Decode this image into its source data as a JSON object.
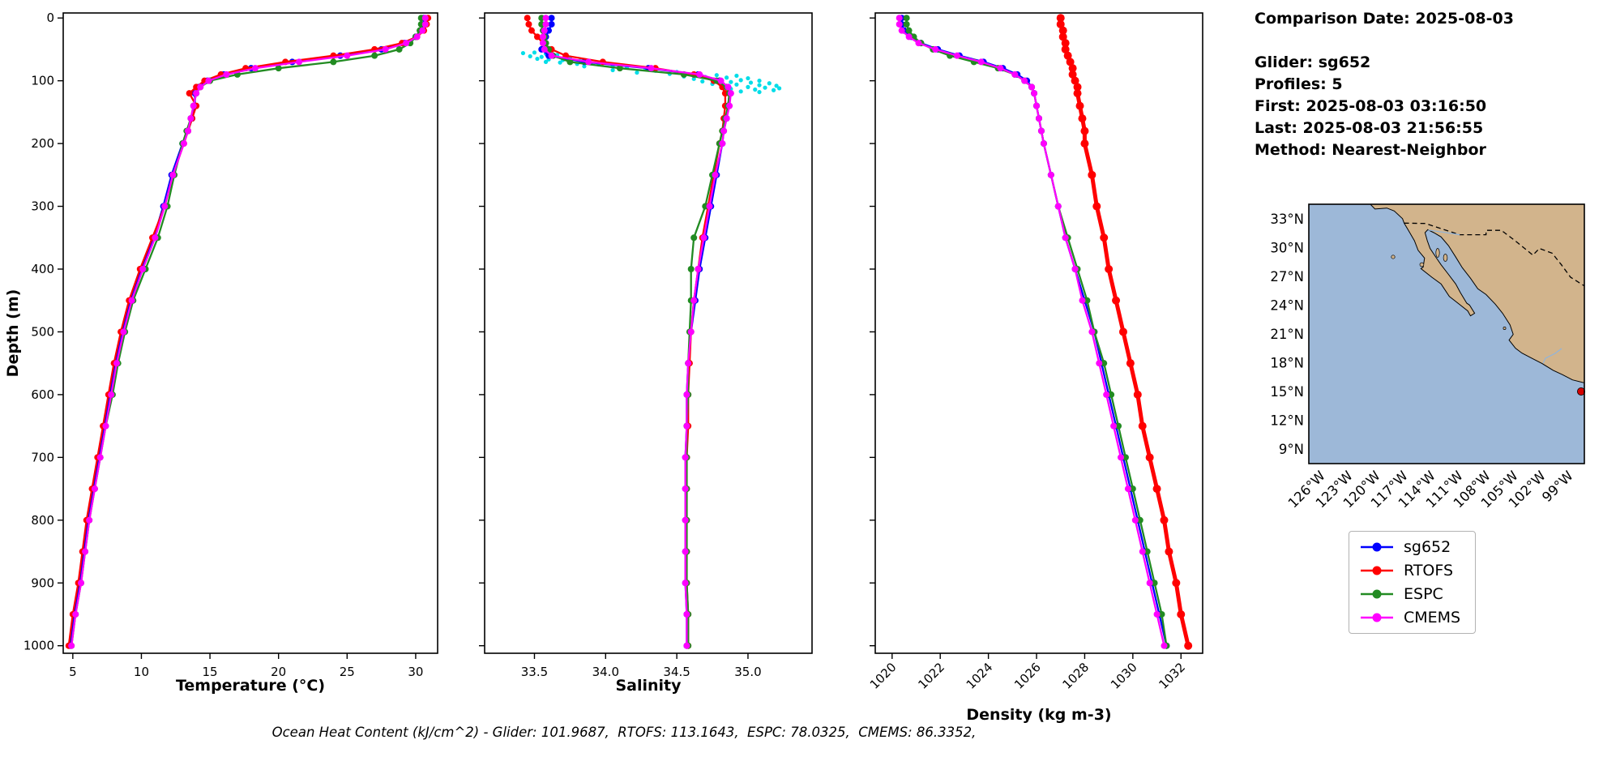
{
  "info_panel": {
    "date_line": "Comparison Date: 2025-08-03",
    "glider_line": "Glider: sg652",
    "profiles_line": "Profiles: 5",
    "first_line": "First: 2025-08-03 03:16:50",
    "last_line": "Last: 2025-08-03 21:56:55",
    "method_line": "Method: Nearest-Neighbor"
  },
  "legend": {
    "items": [
      {
        "label": "sg652",
        "color": "#0000ff"
      },
      {
        "label": "RTOFS",
        "color": "#ff0000"
      },
      {
        "label": "ESPC",
        "color": "#228b22"
      },
      {
        "label": "CMEMS",
        "color": "#ff00ff"
      }
    ]
  },
  "map": {
    "ocean_color": "#9db8d8",
    "land_color": "#d2b48c",
    "marker_color": "#d40000",
    "lat_ticks": [
      33,
      30,
      27,
      24,
      21,
      18,
      15,
      12,
      9
    ],
    "lat_labels": [
      "33°N",
      "30°N",
      "27°N",
      "24°N",
      "21°N",
      "18°N",
      "15°N",
      "12°N",
      "9°N"
    ],
    "lon_ticks": [
      -126,
      -123,
      -120,
      -117,
      -114,
      -111,
      -108,
      -105,
      -102,
      -99
    ],
    "lon_labels": [
      "126°W",
      "123°W",
      "120°W",
      "117°W",
      "114°W",
      "111°W",
      "108°W",
      "105°W",
      "102°W",
      "99°W"
    ]
  },
  "footer": {
    "caption": "Ocean Heat Content (kJ/cm^2) - Glider: 101.9687,  RTOFS: 113.1643,  ESPC: 78.0325,  CMEMS: 86.3352,"
  },
  "chart_data": [
    {
      "type": "line",
      "xlabel": "Temperature (°C)",
      "ylabel": "Depth (m)",
      "xlim": [
        4.3,
        31.6
      ],
      "ylim": [
        -8,
        1012
      ],
      "x_ticks": [
        5,
        10,
        15,
        20,
        25,
        30
      ],
      "x_tick_labels": [
        "5",
        "10",
        "15",
        "20",
        "25",
        "30"
      ],
      "y_ticks": [
        0,
        100,
        200,
        300,
        400,
        500,
        600,
        700,
        800,
        900,
        1000
      ],
      "y_tick_labels": [
        "0",
        "100",
        "200",
        "300",
        "400",
        "500",
        "600",
        "700",
        "800",
        "900",
        "1000"
      ],
      "show_y_tick_labels": true,
      "rotate_x_tick_labels": false,
      "depths": [
        0,
        10,
        20,
        30,
        40,
        50,
        60,
        70,
        80,
        90,
        100,
        110,
        120,
        140,
        160,
        180,
        200,
        250,
        300,
        350,
        400,
        450,
        500,
        550,
        600,
        650,
        700,
        750,
        800,
        850,
        900,
        950,
        1000
      ],
      "series": [
        {
          "name": "sg652",
          "color": "#0000ff",
          "values": [
            30.6,
            30.6,
            30.4,
            30.0,
            29.2,
            27.5,
            24.5,
            21.0,
            18.0,
            16.0,
            14.8,
            14.2,
            13.9,
            13.9,
            13.7,
            13.4,
            13.0,
            12.2,
            11.6,
            10.9,
            10.0,
            9.2,
            8.6,
            8.1,
            7.7,
            7.3,
            6.9,
            6.5,
            6.1,
            5.8,
            5.5,
            5.1,
            4.8
          ]
        },
        {
          "name": "RTOFS",
          "color": "#ff0000",
          "values": [
            30.9,
            30.8,
            30.6,
            30.1,
            29.0,
            27.0,
            24.0,
            20.5,
            17.6,
            15.8,
            14.6,
            14.0,
            13.5,
            14.0,
            13.7,
            13.4,
            13.1,
            12.3,
            11.7,
            10.8,
            9.9,
            9.1,
            8.5,
            8.0,
            7.6,
            7.2,
            6.8,
            6.4,
            6.0,
            5.7,
            5.4,
            5.0,
            4.7
          ]
        },
        {
          "name": "ESPC",
          "color": "#228b22",
          "values": [
            30.4,
            30.4,
            30.3,
            30.0,
            29.6,
            28.8,
            27.0,
            24.0,
            20.0,
            17.0,
            15.0,
            14.3,
            14.0,
            13.8,
            13.6,
            13.3,
            13.0,
            12.4,
            11.9,
            11.2,
            10.3,
            9.4,
            8.8,
            8.3,
            7.9,
            7.4,
            7.0,
            6.6,
            6.2,
            5.9,
            5.6,
            5.2,
            4.9
          ]
        },
        {
          "name": "CMEMS",
          "color": "#ff00ff",
          "values": [
            30.7,
            30.7,
            30.5,
            30.1,
            29.3,
            27.8,
            25.0,
            21.5,
            18.3,
            16.2,
            14.9,
            14.3,
            14.0,
            13.8,
            13.6,
            13.4,
            13.1,
            12.3,
            11.7,
            11.0,
            10.1,
            9.3,
            8.7,
            8.2,
            7.8,
            7.4,
            7.0,
            6.6,
            6.2,
            5.9,
            5.6,
            5.2,
            4.9
          ]
        }
      ]
    },
    {
      "type": "line",
      "xlabel": "Salinity",
      "ylabel": "",
      "xlim": [
        33.15,
        35.45
      ],
      "ylim": [
        -8,
        1012
      ],
      "x_ticks": [
        33.5,
        34.0,
        34.5,
        35.0
      ],
      "x_tick_labels": [
        "33.5",
        "34.0",
        "34.5",
        "35.0"
      ],
      "y_ticks": [
        0,
        100,
        200,
        300,
        400,
        500,
        600,
        700,
        800,
        900,
        1000
      ],
      "y_tick_labels": [
        "0",
        "100",
        "200",
        "300",
        "400",
        "500",
        "600",
        "700",
        "800",
        "900",
        "1000"
      ],
      "show_y_tick_labels": false,
      "rotate_x_tick_labels": false,
      "depths": [
        0,
        10,
        20,
        30,
        40,
        50,
        60,
        70,
        80,
        90,
        100,
        110,
        120,
        140,
        160,
        180,
        200,
        250,
        300,
        350,
        400,
        450,
        500,
        550,
        600,
        650,
        700,
        750,
        800,
        850,
        900,
        950,
        1000
      ],
      "scatter": {
        "name": "glider-raw-salinity",
        "color": "#00dde8",
        "points": [
          [
            33.42,
            56
          ],
          [
            33.5,
            55
          ],
          [
            33.58,
            57
          ],
          [
            33.66,
            59
          ],
          [
            33.47,
            61
          ],
          [
            33.55,
            62
          ],
          [
            33.64,
            60
          ],
          [
            33.75,
            63
          ],
          [
            33.52,
            65
          ],
          [
            33.6,
            66
          ],
          [
            33.7,
            67
          ],
          [
            33.82,
            68
          ],
          [
            33.58,
            70
          ],
          [
            33.68,
            71
          ],
          [
            33.8,
            73
          ],
          [
            33.95,
            74
          ],
          [
            34.05,
            76
          ],
          [
            33.85,
            77
          ],
          [
            34.15,
            79
          ],
          [
            34.28,
            81
          ],
          [
            34.05,
            83
          ],
          [
            34.35,
            84
          ],
          [
            34.5,
            86
          ],
          [
            34.22,
            87
          ],
          [
            34.45,
            89
          ],
          [
            34.62,
            90
          ],
          [
            34.78,
            91
          ],
          [
            34.92,
            92
          ],
          [
            34.55,
            93
          ],
          [
            34.7,
            94
          ],
          [
            34.85,
            95
          ],
          [
            35.0,
            96
          ],
          [
            34.62,
            97
          ],
          [
            34.8,
            98
          ],
          [
            34.95,
            99
          ],
          [
            35.08,
            100
          ],
          [
            34.68,
            101
          ],
          [
            34.88,
            102
          ],
          [
            35.02,
            103
          ],
          [
            35.15,
            104
          ],
          [
            34.75,
            105
          ],
          [
            34.92,
            106
          ],
          [
            35.08,
            107
          ],
          [
            35.2,
            108
          ],
          [
            34.82,
            109
          ],
          [
            35.0,
            110
          ],
          [
            35.12,
            111
          ],
          [
            35.22,
            112
          ],
          [
            34.88,
            113
          ],
          [
            35.05,
            114
          ],
          [
            35.18,
            115
          ],
          [
            34.95,
            117
          ],
          [
            35.08,
            118
          ],
          [
            34.85,
            119
          ]
        ]
      },
      "series": [
        {
          "name": "sg652",
          "color": "#0000ff",
          "values": [
            33.62,
            33.62,
            33.6,
            33.58,
            33.56,
            33.55,
            33.6,
            33.85,
            34.3,
            34.65,
            34.8,
            34.86,
            34.87,
            34.86,
            34.85,
            34.83,
            34.82,
            34.78,
            34.74,
            34.7,
            34.66,
            34.63,
            34.6,
            34.58,
            34.57,
            34.57,
            34.56,
            34.56,
            34.56,
            34.56,
            34.56,
            34.57,
            34.57
          ]
        },
        {
          "name": "RTOFS",
          "color": "#ff0000",
          "values": [
            33.45,
            33.46,
            33.48,
            33.52,
            33.56,
            33.62,
            33.72,
            33.98,
            34.35,
            34.62,
            34.76,
            34.82,
            34.84,
            34.84,
            34.83,
            34.82,
            34.8,
            34.76,
            34.72,
            34.68,
            34.65,
            34.62,
            34.6,
            34.59,
            34.58,
            34.58,
            34.57,
            34.57,
            34.57,
            34.57,
            34.57,
            34.58,
            34.58
          ]
        },
        {
          "name": "ESPC",
          "color": "#228b22",
          "values": [
            33.55,
            33.55,
            33.56,
            33.57,
            33.58,
            33.6,
            33.63,
            33.75,
            34.1,
            34.55,
            34.78,
            34.85,
            34.87,
            34.86,
            34.84,
            34.82,
            34.8,
            34.75,
            34.7,
            34.62,
            34.6,
            34.6,
            34.59,
            34.58,
            34.58,
            34.57,
            34.57,
            34.57,
            34.57,
            34.57,
            34.57,
            34.58,
            34.58
          ]
        },
        {
          "name": "CMEMS",
          "color": "#ff00ff",
          "values": [
            33.58,
            33.58,
            33.57,
            33.56,
            33.56,
            33.57,
            33.62,
            33.88,
            34.32,
            34.66,
            34.81,
            34.86,
            34.88,
            34.87,
            34.85,
            34.83,
            34.82,
            34.77,
            34.73,
            34.69,
            34.65,
            34.62,
            34.6,
            34.58,
            34.57,
            34.57,
            34.56,
            34.56,
            34.56,
            34.56,
            34.56,
            34.57,
            34.57
          ]
        }
      ]
    },
    {
      "type": "line",
      "xlabel": "Density (kg m-3)",
      "ylabel": "",
      "xlim": [
        1019.3,
        1032.9
      ],
      "ylim": [
        -8,
        1012
      ],
      "x_ticks": [
        1020,
        1022,
        1024,
        1026,
        1028,
        1030,
        1032
      ],
      "x_tick_labels": [
        "1020",
        "1022",
        "1024",
        "1026",
        "1028",
        "1030",
        "1032"
      ],
      "y_ticks": [
        0,
        100,
        200,
        300,
        400,
        500,
        600,
        700,
        800,
        900,
        1000
      ],
      "y_tick_labels": [
        "0",
        "100",
        "200",
        "300",
        "400",
        "500",
        "600",
        "700",
        "800",
        "900",
        "1000"
      ],
      "show_y_tick_labels": false,
      "rotate_x_tick_labels": true,
      "depths": [
        0,
        10,
        20,
        30,
        40,
        50,
        60,
        70,
        80,
        90,
        100,
        110,
        120,
        140,
        160,
        180,
        200,
        250,
        300,
        350,
        400,
        450,
        500,
        550,
        600,
        650,
        700,
        750,
        800,
        850,
        900,
        950,
        1000
      ],
      "series": [
        {
          "name": "sg652",
          "color": "#0000ff",
          "values": [
            1020.4,
            1020.4,
            1020.5,
            1020.8,
            1021.2,
            1021.9,
            1022.8,
            1023.8,
            1024.6,
            1025.2,
            1025.6,
            1025.8,
            1025.9,
            1026.0,
            1026.1,
            1026.2,
            1026.3,
            1026.6,
            1026.9,
            1027.2,
            1027.6,
            1028.0,
            1028.4,
            1028.7,
            1029.0,
            1029.3,
            1029.6,
            1029.9,
            1030.2,
            1030.5,
            1030.8,
            1031.1,
            1031.4
          ]
        },
        {
          "name": "RTOFS",
          "color": "#ff0000",
          "lw": 5,
          "ms": 5,
          "values": [
            1027.0,
            1027.0,
            1027.1,
            1027.1,
            1027.2,
            1027.2,
            1027.3,
            1027.4,
            1027.5,
            1027.5,
            1027.6,
            1027.7,
            1027.7,
            1027.8,
            1027.9,
            1028.0,
            1028.0,
            1028.3,
            1028.5,
            1028.8,
            1029.0,
            1029.3,
            1029.6,
            1029.9,
            1030.2,
            1030.4,
            1030.7,
            1031.0,
            1031.3,
            1031.5,
            1031.8,
            1032.0,
            1032.3
          ]
        },
        {
          "name": "ESPC",
          "color": "#228b22",
          "values": [
            1020.6,
            1020.6,
            1020.7,
            1020.9,
            1021.2,
            1021.7,
            1022.4,
            1023.4,
            1024.4,
            1025.1,
            1025.5,
            1025.8,
            1025.9,
            1026.0,
            1026.1,
            1026.2,
            1026.3,
            1026.6,
            1026.9,
            1027.3,
            1027.7,
            1028.1,
            1028.4,
            1028.8,
            1029.1,
            1029.4,
            1029.7,
            1030.0,
            1030.3,
            1030.6,
            1030.9,
            1031.2,
            1031.4
          ]
        },
        {
          "name": "CMEMS",
          "color": "#ff00ff",
          "values": [
            1020.3,
            1020.3,
            1020.4,
            1020.7,
            1021.1,
            1021.8,
            1022.7,
            1023.7,
            1024.5,
            1025.1,
            1025.5,
            1025.8,
            1025.9,
            1026.0,
            1026.1,
            1026.2,
            1026.3,
            1026.6,
            1026.9,
            1027.2,
            1027.6,
            1027.9,
            1028.3,
            1028.6,
            1028.9,
            1029.2,
            1029.5,
            1029.8,
            1030.1,
            1030.4,
            1030.7,
            1031.0,
            1031.3
          ]
        }
      ]
    }
  ]
}
